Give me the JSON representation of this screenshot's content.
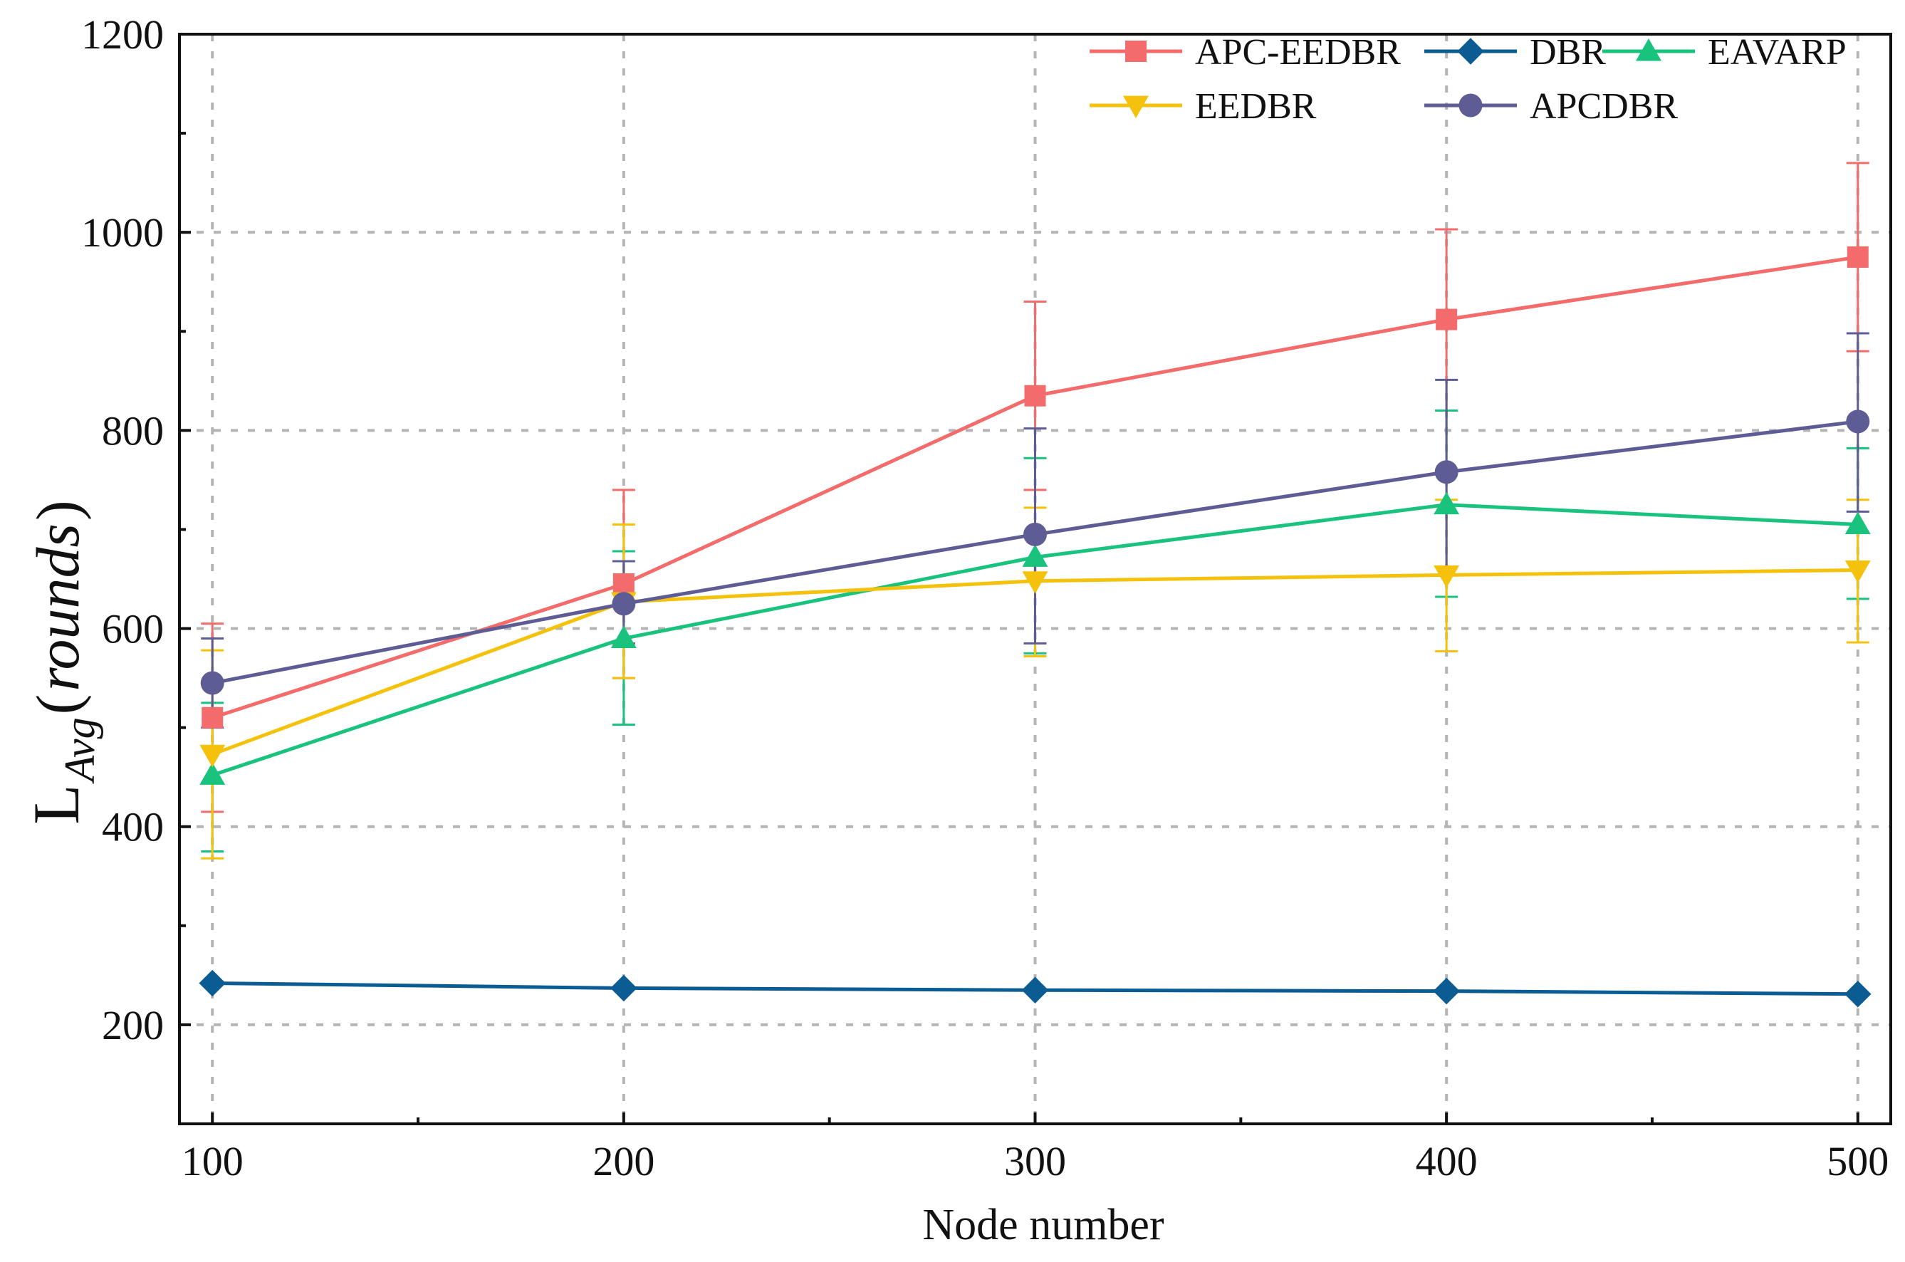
{
  "chart_data": {
    "type": "line",
    "title": "",
    "xlabel": "Node number",
    "ylabel": {
      "main": "L",
      "subscript": "Avg",
      "paren_open": "(",
      "unit": "rounds",
      "paren_close": ")"
    },
    "x": [
      100,
      200,
      300,
      400,
      500
    ],
    "x_tick_labels": [
      "100",
      "200",
      "300",
      "400",
      "500"
    ],
    "xlim": [
      92,
      508
    ],
    "ylim": [
      100,
      1200
    ],
    "y_ticks": [
      200,
      400,
      600,
      800,
      1000,
      1200
    ],
    "y_tick_labels": [
      "200",
      "400",
      "600",
      "800",
      "1000",
      "1200"
    ],
    "grid": true,
    "legend_position": "top-right",
    "series": [
      {
        "name": "APC-EEDBR",
        "color": "#f46b6b",
        "marker": "square",
        "values": [
          510,
          645,
          835,
          912,
          975
        ],
        "err_low": [
          415,
          550,
          740,
          820,
          880
        ],
        "err_high": [
          605,
          740,
          930,
          1003,
          1070
        ]
      },
      {
        "name": "DBR",
        "color": "#0c5c94",
        "marker": "diamond",
        "values": [
          242,
          237,
          235,
          234,
          231
        ],
        "err_low": [
          242,
          237,
          235,
          234,
          231
        ],
        "err_high": [
          242,
          237,
          235,
          234,
          231
        ]
      },
      {
        "name": "EAVARP",
        "color": "#19c37d",
        "marker": "triangle-up",
        "values": [
          452,
          590,
          672,
          725,
          705
        ],
        "err_low": [
          375,
          503,
          575,
          632,
          630
        ],
        "err_high": [
          525,
          678,
          772,
          820,
          782
        ]
      },
      {
        "name": "EEDBR",
        "color": "#f4c20d",
        "marker": "triangle-down",
        "values": [
          473,
          627,
          648,
          654,
          659
        ],
        "err_low": [
          368,
          550,
          572,
          577,
          586
        ],
        "err_high": [
          578,
          705,
          722,
          730,
          730
        ]
      },
      {
        "name": "APCDBR",
        "color": "#5e5c94",
        "marker": "circle",
        "values": [
          545,
          625,
          695,
          758,
          809
        ],
        "err_low": [
          500,
          585,
          585,
          662,
          718
        ],
        "err_high": [
          590,
          668,
          802,
          851,
          898
        ]
      }
    ]
  }
}
